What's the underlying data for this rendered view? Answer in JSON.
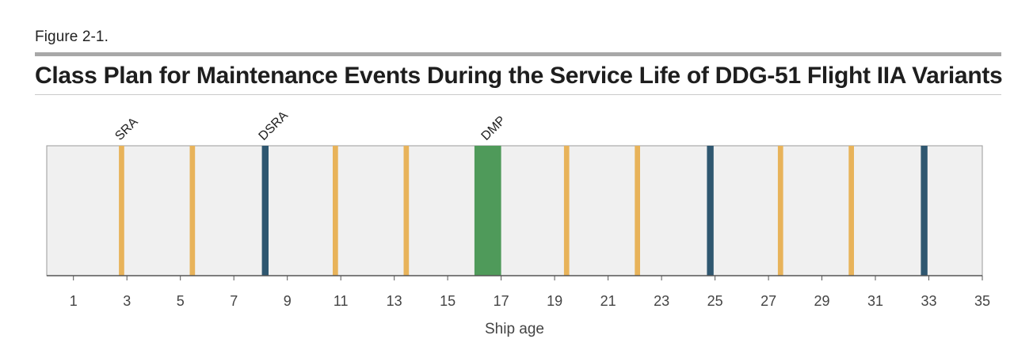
{
  "figure_label": "Figure 2-1.",
  "title": "Class Plan for Maintenance Events During the Service Life of DDG-51 Flight IIA Variants",
  "colors": {
    "SRA": "#e8b35a",
    "DSRA": "#2f5770",
    "DMP": "#4f9a5a",
    "plot_bg": "#f0f0f0",
    "frame": "#9a9a9a",
    "axis": "#555555"
  },
  "chart_data": {
    "type": "bar",
    "title": "Class Plan for Maintenance Events During the Service Life of DDG-51 Flight IIA Variants",
    "xlabel": "Ship age",
    "ylabel": "",
    "xlim": [
      0,
      35
    ],
    "x_ticks": [
      1,
      3,
      5,
      7,
      9,
      11,
      13,
      15,
      17,
      19,
      21,
      23,
      25,
      27,
      29,
      31,
      33,
      35
    ],
    "grid": false,
    "legend": "none",
    "events": [
      {
        "type": "SRA",
        "age": 2.7,
        "duration": 0.2,
        "label": "SRA"
      },
      {
        "type": "SRA",
        "age": 5.35,
        "duration": 0.2,
        "label": ""
      },
      {
        "type": "DSRA",
        "age": 8.05,
        "duration": 0.25,
        "label": "DSRA"
      },
      {
        "type": "SRA",
        "age": 10.7,
        "duration": 0.2,
        "label": ""
      },
      {
        "type": "SRA",
        "age": 13.35,
        "duration": 0.2,
        "label": ""
      },
      {
        "type": "DMP",
        "age": 16.0,
        "duration": 1.0,
        "label": "DMP"
      },
      {
        "type": "SRA",
        "age": 19.35,
        "duration": 0.2,
        "label": ""
      },
      {
        "type": "SRA",
        "age": 22.0,
        "duration": 0.2,
        "label": ""
      },
      {
        "type": "DSRA",
        "age": 24.7,
        "duration": 0.25,
        "label": ""
      },
      {
        "type": "SRA",
        "age": 27.35,
        "duration": 0.2,
        "label": ""
      },
      {
        "type": "SRA",
        "age": 30.0,
        "duration": 0.2,
        "label": ""
      },
      {
        "type": "DSRA",
        "age": 32.7,
        "duration": 0.25,
        "label": ""
      }
    ]
  }
}
